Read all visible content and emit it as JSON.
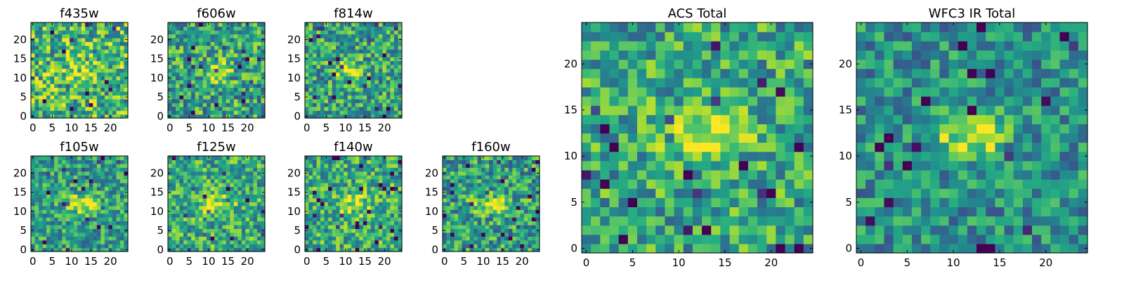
{
  "chart_data": {
    "type": "heatmap",
    "colormap": "viridis",
    "image_size": 25,
    "panels": [
      {
        "title": "f435w",
        "xticks": [
          0,
          5,
          10,
          15,
          20
        ],
        "yticks": [
          0,
          5,
          10,
          15,
          20
        ],
        "noise": 0.34,
        "blob_strength": 0.18,
        "blob_center": [
          12,
          12
        ],
        "blob_sigma": [
          3.0,
          2.5
        ],
        "base": 0.66,
        "seed": 11
      },
      {
        "title": "f606w",
        "xticks": [
          0,
          5,
          10,
          15,
          20
        ],
        "yticks": [
          0,
          5,
          10,
          15,
          20
        ],
        "noise": 0.32,
        "blob_strength": 0.28,
        "blob_center": [
          12,
          12
        ],
        "blob_sigma": [
          3.0,
          2.0
        ],
        "base": 0.58,
        "seed": 23
      },
      {
        "title": "f814w",
        "xticks": [
          0,
          5,
          10,
          15,
          20
        ],
        "yticks": [
          0,
          5,
          10,
          15,
          20
        ],
        "noise": 0.3,
        "blob_strength": 0.4,
        "blob_center": [
          11,
          12
        ],
        "blob_sigma": [
          2.5,
          1.8
        ],
        "base": 0.58,
        "seed": 37
      },
      {
        "title": "f105w",
        "xticks": [
          0,
          5,
          10,
          15,
          20
        ],
        "yticks": [
          0,
          5,
          10,
          15,
          20
        ],
        "noise": 0.26,
        "blob_strength": 0.4,
        "blob_center": [
          13,
          12
        ],
        "blob_sigma": [
          3.0,
          1.8
        ],
        "base": 0.56,
        "seed": 41
      },
      {
        "title": "f125w",
        "xticks": [
          0,
          5,
          10,
          15,
          20
        ],
        "yticks": [
          0,
          5,
          10,
          15,
          20
        ],
        "noise": 0.28,
        "blob_strength": 0.3,
        "blob_center": [
          12,
          12
        ],
        "blob_sigma": [
          3.0,
          2.0
        ],
        "base": 0.62,
        "seed": 53
      },
      {
        "title": "f140w",
        "xticks": [
          0,
          5,
          10,
          15,
          20
        ],
        "yticks": [
          0,
          5,
          10,
          15,
          20
        ],
        "noise": 0.28,
        "blob_strength": 0.3,
        "blob_center": [
          12,
          12
        ],
        "blob_sigma": [
          3.0,
          2.0
        ],
        "base": 0.62,
        "seed": 67
      },
      {
        "title": "f160w",
        "xticks": [
          0,
          5,
          10,
          15,
          20
        ],
        "yticks": [
          0,
          5,
          10,
          15,
          20
        ],
        "noise": 0.3,
        "blob_strength": 0.4,
        "blob_center": [
          12,
          12
        ],
        "blob_sigma": [
          3.0,
          1.5
        ],
        "base": 0.56,
        "seed": 71
      },
      {
        "title": "ACS Total",
        "xticks": [
          0,
          5,
          10,
          15,
          20
        ],
        "yticks": [
          0,
          5,
          10,
          15,
          20
        ],
        "noise": 0.28,
        "blob_strength": 0.36,
        "blob_center": [
          12,
          12.5
        ],
        "blob_sigma": [
          3.5,
          1.8
        ],
        "base": 0.6,
        "seed": 83
      },
      {
        "title": "WFC3 IR Total",
        "xticks": [
          0,
          5,
          10,
          15,
          20
        ],
        "yticks": [
          0,
          5,
          10,
          15,
          20
        ],
        "noise": 0.24,
        "blob_strength": 0.45,
        "blob_center": [
          12,
          12
        ],
        "blob_sigma": [
          3.0,
          1.6
        ],
        "base": 0.5,
        "seed": 97
      }
    ]
  }
}
